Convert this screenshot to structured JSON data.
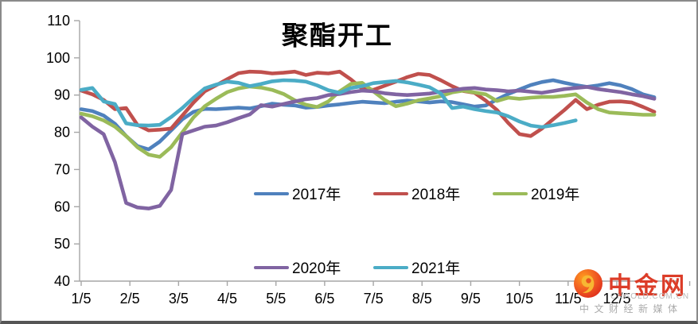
{
  "title": "聚酯开工",
  "colors": {
    "axis": "#a6a6a6",
    "frame_border": "#8a8a8a",
    "series_2017": "#4F81BD",
    "series_2018": "#C0504D",
    "series_2019": "#9BBB59",
    "series_2020": "#8064A2",
    "series_2021": "#4BACC6",
    "watermark_red": "#dc3c28",
    "watermark_gray": "#b0b0b0"
  },
  "axes": {
    "y_ticks": [
      110,
      100,
      90,
      80,
      70,
      60,
      50,
      40
    ],
    "x_ticklabels": [
      "1/5",
      "2/5",
      "3/5",
      "4/5",
      "5/5",
      "6/5",
      "7/5",
      "8/5",
      "9/5",
      "10/5",
      "11/5",
      "12/5"
    ]
  },
  "legend": {
    "items": [
      {
        "label": "2017年",
        "color": "#4F81BD"
      },
      {
        "label": "2018年",
        "color": "#C0504D"
      },
      {
        "label": "2019年",
        "color": "#9BBB59"
      },
      {
        "label": "2020年",
        "color": "#8064A2"
      },
      {
        "label": "2021年",
        "color": "#4BACC6"
      }
    ]
  },
  "watermark": {
    "name": "中金网",
    "url": "CNGOLD.COM.CN",
    "slogan": "中文财经新媒体"
  },
  "chart_data": {
    "type": "line",
    "title": "聚酯开工",
    "ylabel": "",
    "xlabel": "",
    "ylim": [
      40,
      110
    ],
    "x_unit": "weekly, starting 1/5 (month/day)",
    "x_ticklabels": [
      "1/5",
      "2/5",
      "3/5",
      "4/5",
      "5/5",
      "6/5",
      "7/5",
      "8/5",
      "9/5",
      "10/5",
      "11/5",
      "12/5"
    ],
    "grid": false,
    "legend_position": "center, two rows inside plot",
    "series": [
      {
        "name": "2017年",
        "color": "#4F81BD",
        "values": [
          86.2,
          85.7,
          84.5,
          82.3,
          79,
          76.3,
          75.4,
          77.5,
          80.5,
          83.5,
          85.5,
          86.3,
          86.2,
          86.4,
          86.6,
          86.4,
          87,
          87.7,
          87.4,
          87.2,
          86.6,
          86.8,
          87.2,
          87.5,
          87.9,
          88.2,
          88,
          87.8,
          88.2,
          88.5,
          88.3,
          88,
          88.3,
          88.1,
          87.5,
          86.9,
          87.2,
          88.8,
          90.3,
          91.5,
          92.7,
          93.5,
          94,
          93.3,
          92.7,
          92.2,
          92.6,
          93.2,
          92.6,
          91.6,
          90.2,
          89.4
        ]
      },
      {
        "name": "2018年",
        "color": "#C0504D",
        "values": [
          91.2,
          90.2,
          88.7,
          86.2,
          86.5,
          82,
          80.5,
          80.7,
          81,
          84.5,
          88,
          91,
          92.6,
          94.3,
          95.9,
          96.3,
          96.2,
          95.8,
          96,
          96.3,
          95.4,
          96,
          95.8,
          96.3,
          94.2,
          91.7,
          91.4,
          92.5,
          93.6,
          94.8,
          95.7,
          95.4,
          94,
          92.4,
          91.1,
          90.6,
          88.5,
          86,
          82.5,
          79.5,
          79,
          81,
          83.5,
          86,
          88.7,
          86.2,
          87.4,
          88.2,
          88.3,
          88,
          86.8,
          85.5
        ]
      },
      {
        "name": "2019年",
        "color": "#9BBB59",
        "values": [
          85,
          84.3,
          83.2,
          81.5,
          79,
          76,
          74,
          73.4,
          76,
          80,
          84,
          87,
          89,
          90.8,
          91.8,
          92.3,
          92,
          91.4,
          90.3,
          88.6,
          87.4,
          86.8,
          88.3,
          91,
          93,
          93.3,
          91,
          88.7,
          87,
          87.7,
          88.6,
          89.1,
          89.7,
          90.7,
          91.2,
          90.7,
          90.2,
          88.4,
          89.3,
          89,
          89.3,
          89.5,
          89.5,
          89.8,
          90.2,
          88,
          86.2,
          85.3,
          85.1,
          84.9,
          84.7,
          84.7
        ]
      },
      {
        "name": "2020年",
        "color": "#8064A2",
        "values": [
          84,
          81.5,
          79.5,
          72,
          61,
          59.8,
          59.5,
          60.2,
          64.5,
          79.5,
          80.5,
          81.5,
          81.8,
          82.7,
          83.8,
          84.8,
          87.3,
          86.9,
          87.6,
          88.3,
          88.9,
          89.2,
          90,
          90.3,
          90.8,
          91.2,
          91,
          90.5,
          90.2,
          90,
          90.2,
          90.4,
          90.9,
          91.3,
          91.7,
          91.9,
          91.5,
          91.3,
          91,
          91.2,
          90.9,
          90.6,
          91.1,
          91.6,
          91.9,
          92.2,
          91.6,
          91.2,
          90.8,
          90.2,
          89.7,
          89
        ]
      },
      {
        "name": "2021年",
        "color": "#4BACC6",
        "values": [
          91.4,
          91.9,
          88.3,
          87.6,
          82.4,
          81.9,
          81.8,
          82,
          84.1,
          86.5,
          89.3,
          91.8,
          92.8,
          93.6,
          93.3,
          92.4,
          93,
          93.7,
          94,
          93.9,
          93.6,
          92.6,
          91.3,
          90.6,
          91.9,
          92.4,
          93.2,
          93.5,
          93.8,
          93.4,
          92.8,
          92.1,
          90.4,
          86.5,
          86.9,
          86.2,
          85.7,
          85.3,
          84.3,
          82.9,
          81.8,
          81.4,
          81.9,
          82.5,
          83.2
        ]
      }
    ]
  }
}
